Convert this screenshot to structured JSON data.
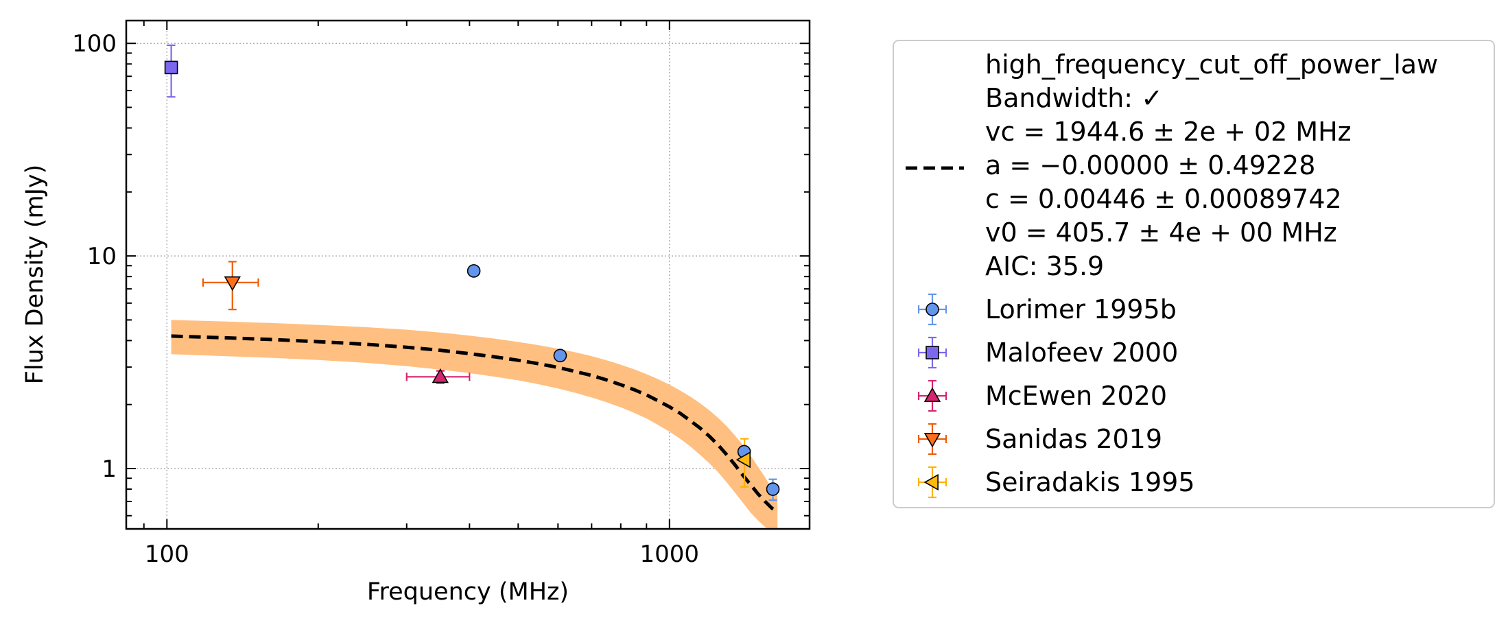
{
  "chart_data": {
    "type": "scatter",
    "xlabel": "Frequency (MHz)",
    "ylabel": "Flux Density (mJy)",
    "xscale": "log",
    "yscale": "log",
    "xlim": [
      83,
      1900
    ],
    "ylim": [
      0.52,
      128
    ],
    "xticks": [
      100,
      1000
    ],
    "xtick_labels": [
      "100",
      "1000"
    ],
    "yticks": [
      1,
      10,
      100
    ],
    "ytick_labels": [
      "1",
      "10",
      "100"
    ],
    "grid": true,
    "legend_position": "outside-right",
    "fit": {
      "name_lines": [
        "high_frequency_cut_off_power_law",
        "Bandwidth: ✓",
        "vc = 1944.6 ± 2e + 02 MHz",
        "a = −0.00000 ± 0.49228",
        "c = 0.00446 ± 0.00089742",
        "v0 = 405.7 ± 4e + 00 MHz",
        "AIC: 35.9"
      ],
      "color": "#000000",
      "band_color": "#ffbf80",
      "curve": {
        "x": [
          102,
          130,
          160,
          200,
          250,
          300,
          350,
          400,
          450,
          500,
          550,
          600,
          650,
          700,
          750,
          800,
          850,
          900,
          950,
          1000,
          1050,
          1100,
          1150,
          1200,
          1250,
          1300,
          1350,
          1400,
          1450,
          1500,
          1550,
          1600,
          1640
        ],
        "y": [
          4.2,
          4.12,
          4.05,
          3.95,
          3.84,
          3.72,
          3.6,
          3.47,
          3.35,
          3.23,
          3.11,
          2.99,
          2.86,
          2.74,
          2.61,
          2.48,
          2.35,
          2.22,
          2.08,
          1.95,
          1.82,
          1.68,
          1.55,
          1.42,
          1.29,
          1.16,
          1.04,
          0.93,
          0.84,
          0.76,
          0.7,
          0.65,
          0.63
        ]
      },
      "band_upper": [
        5.0,
        4.92,
        4.84,
        4.74,
        4.62,
        4.5,
        4.36,
        4.22,
        4.08,
        3.94,
        3.8,
        3.66,
        3.52,
        3.38,
        3.23,
        3.08,
        2.93,
        2.78,
        2.63,
        2.48,
        2.33,
        2.18,
        2.03,
        1.88,
        1.73,
        1.58,
        1.43,
        1.29,
        1.15,
        1.02,
        0.91,
        0.8,
        0.74
      ],
      "band_lower": [
        3.45,
        3.38,
        3.32,
        3.24,
        3.14,
        3.03,
        2.92,
        2.81,
        2.7,
        2.6,
        2.49,
        2.38,
        2.27,
        2.16,
        2.05,
        1.94,
        1.83,
        1.72,
        1.6,
        1.49,
        1.38,
        1.27,
        1.16,
        1.06,
        0.96,
        0.86,
        0.77,
        0.69,
        0.62,
        0.57,
        0.53,
        0.51,
        0.5
      ]
    },
    "series": [
      {
        "name": "Lorimer 1995b",
        "marker": "circle",
        "color": "#6495ed",
        "ecolor": "#6495ed",
        "points": [
          {
            "x": 408,
            "y": 8.5,
            "yerr": 0,
            "xerr": 0
          },
          {
            "x": 606,
            "y": 3.4,
            "yerr": 0,
            "xerr": 0
          },
          {
            "x": 1408,
            "y": 1.2,
            "yerr": 0,
            "xerr": 0
          },
          {
            "x": 1606,
            "y": 0.8,
            "yerr": 0.09,
            "xerr": 0
          }
        ]
      },
      {
        "name": "Malofeev 2000",
        "marker": "square",
        "color": "#7b68ee",
        "ecolor": "#7b68ee",
        "points": [
          {
            "x": 102,
            "y": 77,
            "yerr": 21,
            "xerr": 0
          }
        ]
      },
      {
        "name": "McEwen 2020",
        "marker": "triangle-up",
        "color": "#d6246e",
        "ecolor": "#d6246e",
        "points": [
          {
            "x": 350,
            "y": 2.7,
            "yerr": 0.18,
            "xerr": 50
          }
        ]
      },
      {
        "name": "Sanidas 2019",
        "marker": "triangle-down",
        "color": "#ff6e1a",
        "ecolor": "#ee5c00",
        "points": [
          {
            "x": 135,
            "y": 7.5,
            "yerr": 1.9,
            "xerr": 17
          }
        ]
      },
      {
        "name": "Seiradakis 1995",
        "marker": "triangle-left",
        "color": "#ffb90f",
        "ecolor": "#ffb000",
        "points": [
          {
            "x": 1410,
            "y": 1.1,
            "yerr": 0.28,
            "xerr": 0
          }
        ]
      }
    ]
  }
}
